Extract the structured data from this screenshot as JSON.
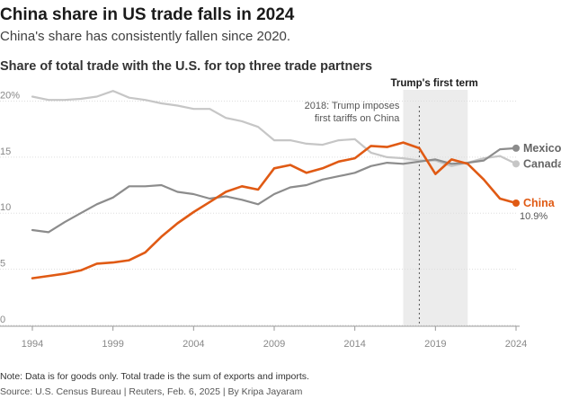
{
  "headline": "China share in US trade falls in 2024",
  "subheadline": "China's share has consistently fallen since 2020.",
  "note": "Note: Data is for goods only. Total trade is the sum of exports and imports.",
  "source": "Source: U.S. Census Bureau | Reuters, Feb. 6, 2025 | By Kripa Jayaram",
  "colors": {
    "china": "#e05a14",
    "mexico": "#8c8c8c",
    "canada": "#c6c6c6",
    "band": "#ececec",
    "grid": "#dddddd"
  },
  "chart_data": {
    "type": "line",
    "title": "Share of total trade with the U.S. for top three trade partners",
    "x": [
      1994,
      1995,
      1996,
      1997,
      1998,
      1999,
      2000,
      2001,
      2002,
      2003,
      2004,
      2005,
      2006,
      2007,
      2008,
      2009,
      2010,
      2011,
      2012,
      2013,
      2014,
      2015,
      2016,
      2017,
      2018,
      2019,
      2020,
      2021,
      2022,
      2023,
      2024
    ],
    "xticks": [
      1994,
      1999,
      2004,
      2009,
      2014,
      2019,
      2024
    ],
    "yticks": [
      {
        "value": 0,
        "label": "0"
      },
      {
        "value": 5,
        "label": "5"
      },
      {
        "value": 10,
        "label": "10"
      },
      {
        "value": 15,
        "label": "15"
      },
      {
        "value": 20,
        "label": "20%"
      }
    ],
    "ylim": [
      0,
      21
    ],
    "xlim": [
      1994,
      2024
    ],
    "grid": true,
    "series": [
      {
        "name": "Canada",
        "key": "canada",
        "values": [
          20.4,
          20.1,
          20.1,
          20.2,
          20.4,
          20.9,
          20.3,
          20.1,
          19.8,
          19.6,
          19.3,
          19.3,
          18.5,
          18.2,
          17.7,
          16.5,
          16.5,
          16.2,
          16.1,
          16.5,
          16.6,
          15.4,
          15.0,
          14.9,
          14.7,
          14.7,
          14.2,
          14.5,
          14.9,
          15.1,
          14.4
        ]
      },
      {
        "name": "Mexico",
        "key": "mexico",
        "values": [
          8.5,
          8.3,
          9.2,
          10.0,
          10.8,
          11.4,
          12.4,
          12.4,
          12.5,
          11.9,
          11.7,
          11.3,
          11.5,
          11.2,
          10.8,
          11.7,
          12.3,
          12.5,
          13.0,
          13.3,
          13.6,
          14.2,
          14.5,
          14.4,
          14.6,
          14.8,
          14.4,
          14.5,
          14.7,
          15.7,
          15.8
        ]
      },
      {
        "name": "China",
        "key": "china",
        "values": [
          4.2,
          4.4,
          4.6,
          4.9,
          5.5,
          5.6,
          5.8,
          6.5,
          7.9,
          9.1,
          10.1,
          11.0,
          11.9,
          12.4,
          12.1,
          14.0,
          14.3,
          13.6,
          14.0,
          14.6,
          14.9,
          16.0,
          15.9,
          16.3,
          15.8,
          13.5,
          14.8,
          14.4,
          13.0,
          11.3,
          10.9
        ]
      }
    ],
    "end_labels": {
      "mexico": "Mexico",
      "canada": "Canada",
      "china": "China",
      "china_value": "10.9%"
    },
    "highlight_band": {
      "start": 2017,
      "end": 2021,
      "label": "Trump's first term"
    },
    "annotation": {
      "year": 2018,
      "line1": "2018: Trump imposes",
      "line2": "first tariffs on China"
    }
  }
}
